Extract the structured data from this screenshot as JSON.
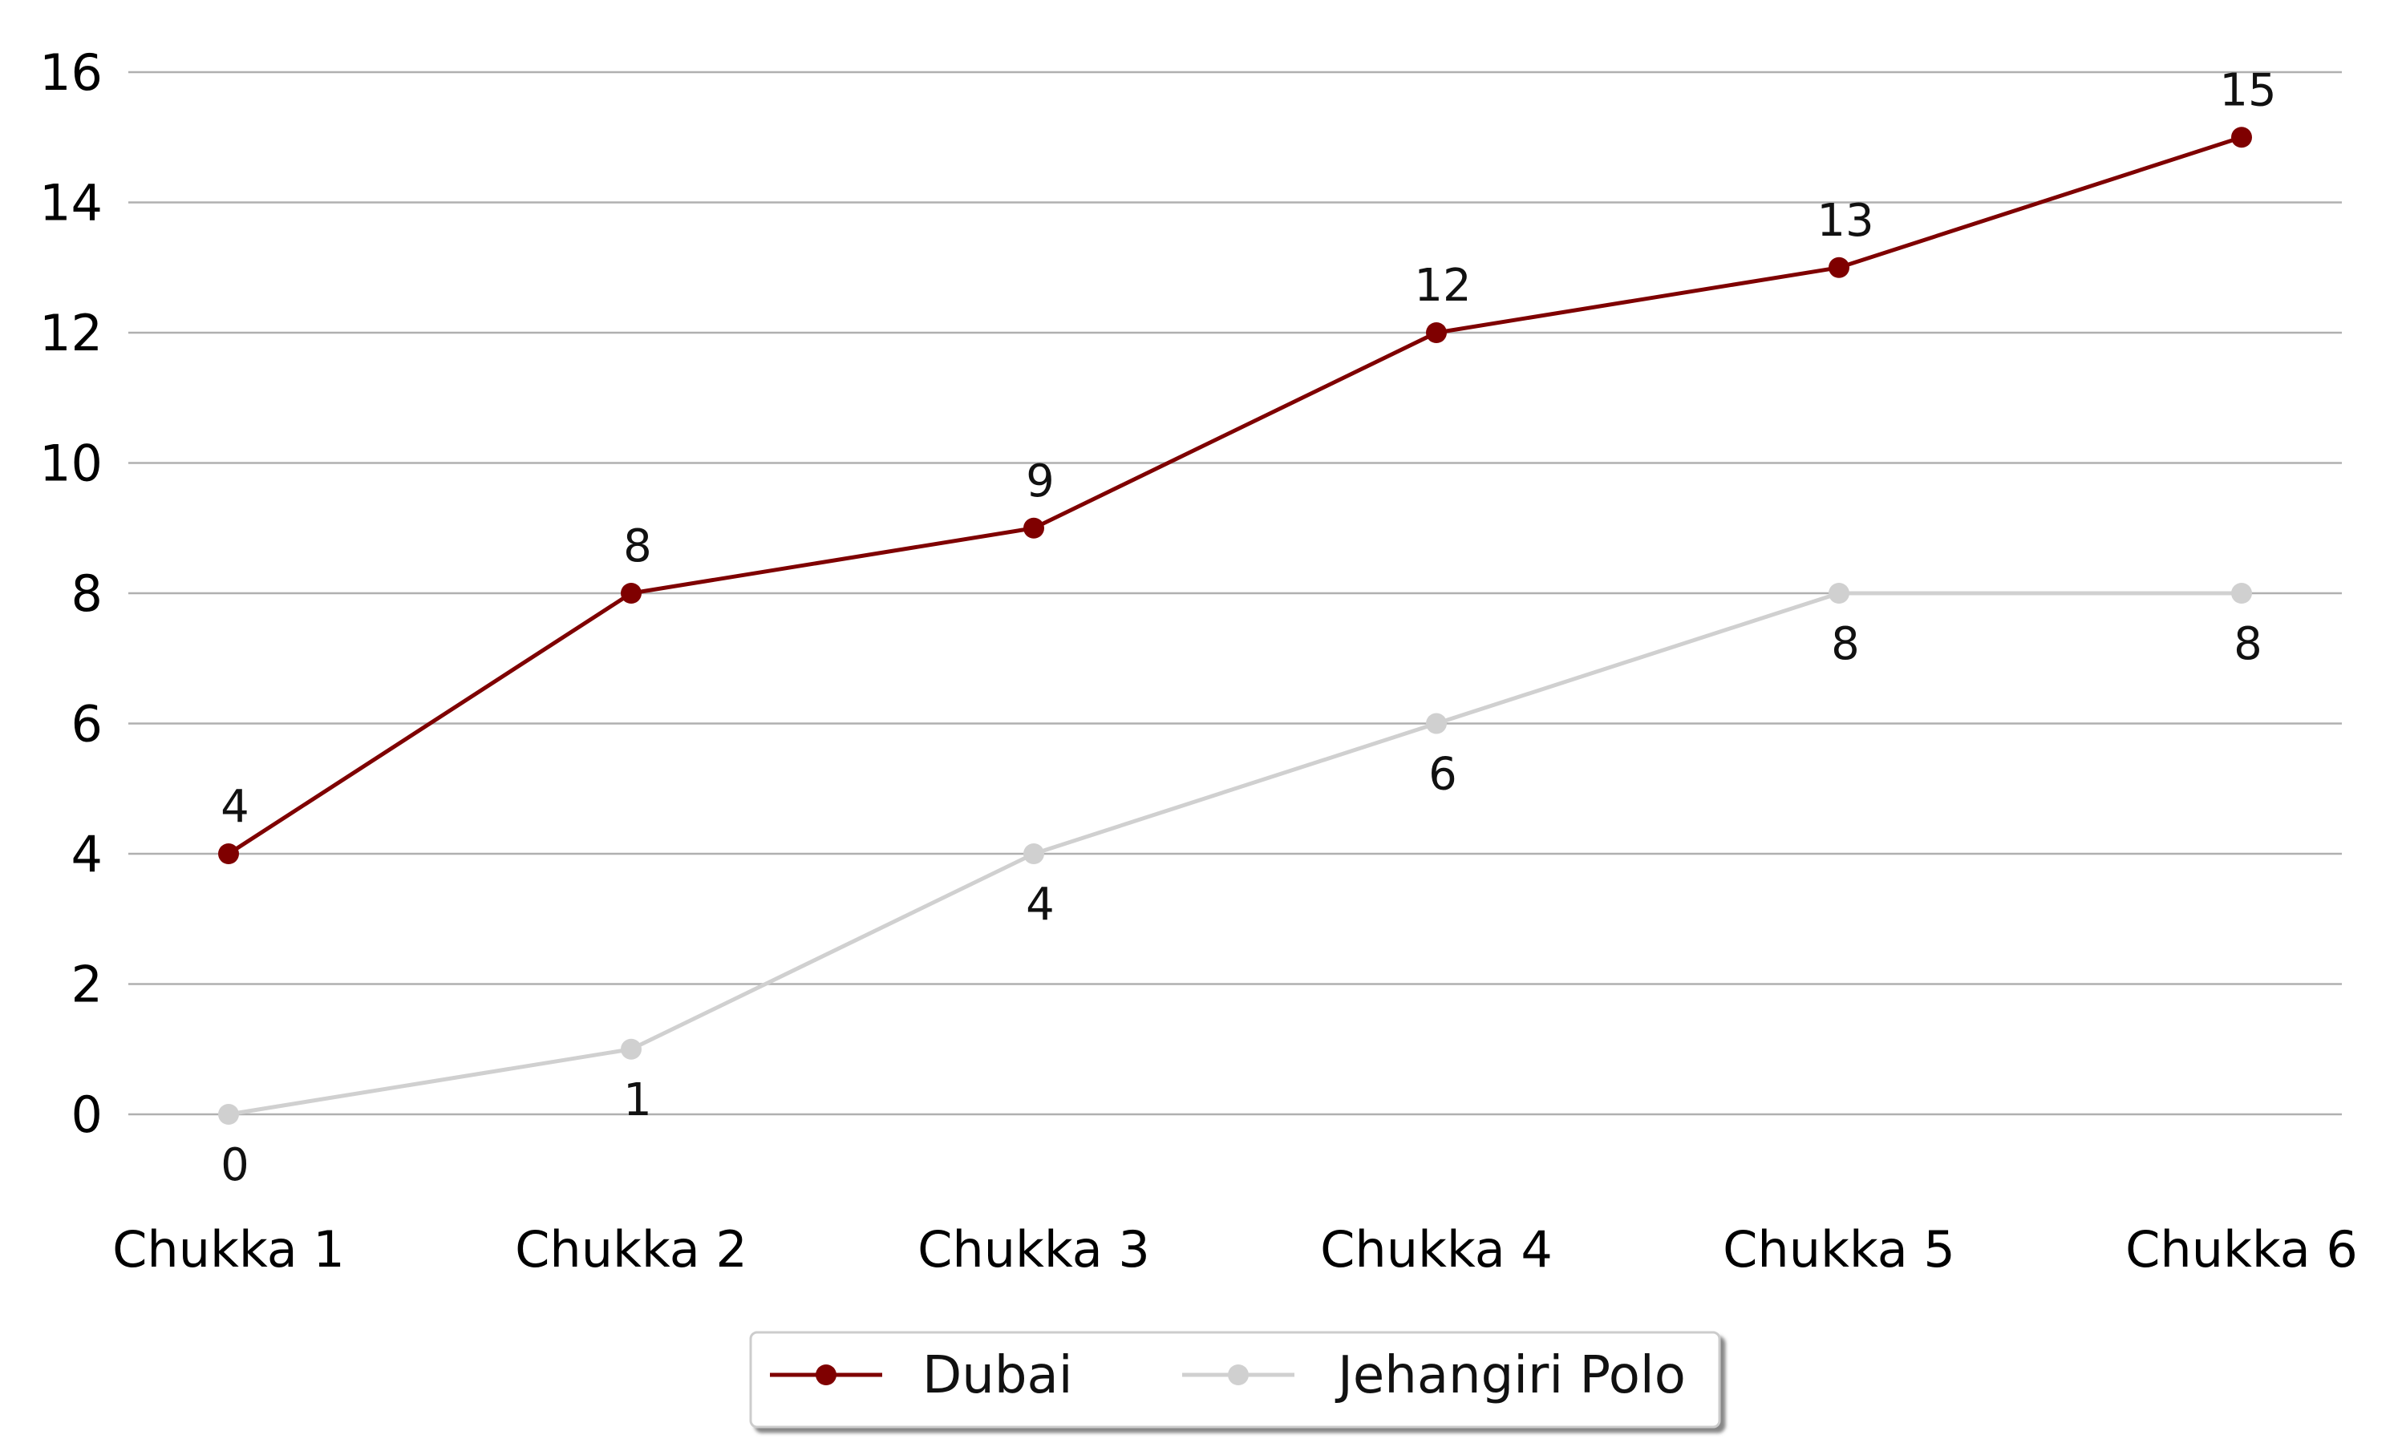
{
  "chart_data": {
    "type": "line",
    "title": "",
    "xlabel": "",
    "ylabel": "",
    "categories": [
      "Chukka 1",
      "Chukka 2",
      "Chukka 3",
      "Chukka 4",
      "Chukka 5",
      "Chukka 6"
    ],
    "ylim": [
      -1,
      16.5
    ],
    "yticks": [
      0,
      2,
      4,
      6,
      8,
      10,
      12,
      14,
      16
    ],
    "grid": "horizontal",
    "legend_position": "bottom-center",
    "data_labels": true,
    "series": [
      {
        "name": "Dubai",
        "color": "#7f0000",
        "label_position": "above",
        "values": [
          4,
          8,
          9,
          12,
          13,
          15
        ]
      },
      {
        "name": "Jehangiri Polo",
        "color": "#d0d0d0",
        "label_position": "below",
        "values": [
          0,
          1,
          4,
          6,
          8,
          8
        ]
      }
    ]
  }
}
